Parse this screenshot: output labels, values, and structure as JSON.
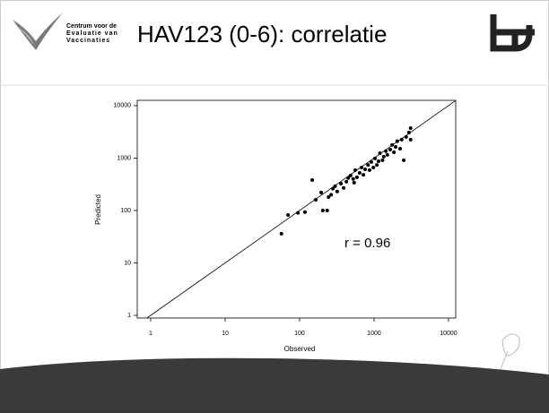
{
  "slide": {
    "title": "HAV123 (0-6): correlatie",
    "logo_text": [
      "Centrum voor de",
      "Evaluatie van",
      "Vaccinaties"
    ]
  },
  "chart_data": {
    "type": "scatter",
    "x_label": "Observed",
    "y_label": "Predicted",
    "annotation": "r = 0.96",
    "log_x": true,
    "log_y": true,
    "identity_line": true,
    "color": "#000000",
    "xlim": [
      0.66,
      12500
    ],
    "ylim": [
      0.89,
      12600
    ],
    "xticks": [
      1,
      10,
      100,
      1000,
      10000
    ],
    "yticks": [
      1,
      10,
      100,
      1000,
      10000
    ],
    "x": [
      57,
      70,
      95,
      118,
      148,
      165,
      195,
      205,
      235,
      245,
      265,
      280,
      300,
      320,
      360,
      390,
      425,
      450,
      485,
      525,
      560,
      590,
      640,
      680,
      720,
      760,
      830,
      870,
      920,
      980,
      1030,
      1090,
      1150,
      1200,
      1300,
      1350,
      1440,
      1510,
      1650,
      1750,
      1850,
      1950,
      2050,
      2240,
      2350,
      2500,
      2700,
      2950,
      3100,
      3100,
      540
    ],
    "y": [
      36,
      82,
      90,
      93,
      380,
      160,
      220,
      100,
      100,
      180,
      200,
      260,
      290,
      230,
      325,
      270,
      355,
      415,
      465,
      400,
      590,
      430,
      520,
      660,
      480,
      610,
      740,
      590,
      840,
      660,
      980,
      740,
      870,
      1240,
      910,
      1060,
      1350,
      1150,
      1450,
      1780,
      1290,
      1630,
      2090,
      1510,
      2240,
      910,
      2530,
      3080,
      3730,
      2240,
      340
    ]
  }
}
